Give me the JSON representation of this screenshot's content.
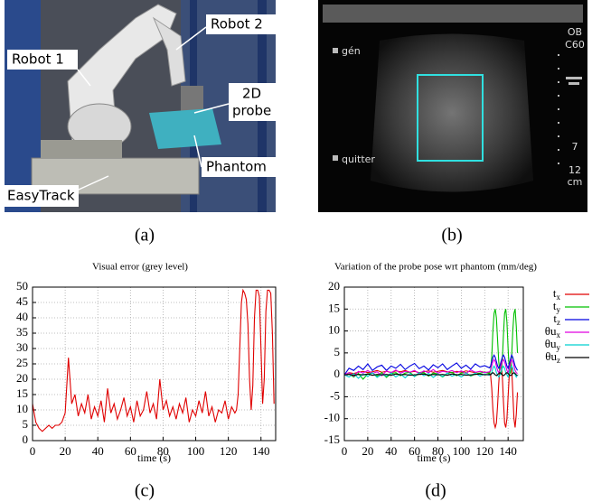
{
  "panel_a": {
    "labels": {
      "robot1": "Robot 1",
      "robot2": "Robot 2",
      "probe": [
        "2D",
        "probe"
      ],
      "phantom": "Phantom",
      "easytrack": "EasyTrack"
    },
    "caption": "(a)"
  },
  "panel_b": {
    "texts": {
      "gen": "gén",
      "quitter": "quitter",
      "ob": "OB",
      "c60": "C60",
      "depth": "7",
      "scale": "12",
      "unit": "cm"
    },
    "caption": "(b)"
  },
  "chart_data": [
    {
      "type": "line",
      "title": "Visual error (grey level)",
      "xlabel": "time (s)",
      "caption": "(c)",
      "xlim": [
        0,
        149
      ],
      "ylim": [
        0,
        50
      ],
      "xticks": [
        0,
        20,
        40,
        60,
        80,
        100,
        120,
        140
      ],
      "yticks": [
        0,
        5,
        10,
        15,
        20,
        25,
        30,
        35,
        40,
        45,
        50
      ],
      "grid": true,
      "x": [
        0,
        2,
        4,
        6,
        8,
        10,
        12,
        14,
        16,
        18,
        20,
        22,
        24,
        26,
        28,
        30,
        32,
        34,
        36,
        38,
        40,
        42,
        44,
        46,
        48,
        50,
        52,
        54,
        56,
        58,
        60,
        62,
        64,
        66,
        68,
        70,
        72,
        74,
        76,
        78,
        80,
        82,
        84,
        86,
        88,
        90,
        92,
        94,
        96,
        98,
        100,
        102,
        104,
        106,
        108,
        110,
        112,
        114,
        116,
        118,
        120,
        122,
        124,
        125,
        126,
        127,
        128,
        129,
        130,
        131,
        132,
        133,
        134,
        135,
        136,
        137,
        138,
        139,
        140,
        141,
        142,
        143,
        144,
        145,
        146,
        147,
        148
      ],
      "series": [
        {
          "color": "#e00000",
          "values": [
            12,
            6,
            4,
            3,
            4,
            5,
            4,
            5,
            5,
            6,
            9,
            27,
            12,
            15,
            8,
            12,
            9,
            15,
            7,
            11,
            8,
            13,
            6,
            17,
            9,
            12,
            7,
            10,
            14,
            8,
            11,
            6,
            13,
            8,
            10,
            16,
            9,
            12,
            7,
            20,
            10,
            13,
            8,
            11,
            7,
            12,
            9,
            14,
            6,
            10,
            8,
            13,
            9,
            16,
            8,
            11,
            6,
            10,
            9,
            13,
            7,
            11,
            9,
            10,
            15,
            30,
            45,
            49,
            48,
            46,
            38,
            20,
            10,
            18,
            40,
            49,
            49,
            47,
            30,
            12,
            20,
            42,
            49,
            49,
            48,
            35,
            12
          ]
        }
      ]
    },
    {
      "type": "line",
      "title": "Variation of the probe pose wrt phantom (mm/deg)",
      "xlabel": "time (s)",
      "caption": "(d)",
      "xlim": [
        0,
        153
      ],
      "ylim": [
        -15,
        20
      ],
      "xticks": [
        0,
        20,
        40,
        60,
        80,
        100,
        120,
        140
      ],
      "yticks": [
        -15,
        -10,
        -5,
        0,
        5,
        10,
        15,
        20
      ],
      "grid": true,
      "legend": "right",
      "x": [
        0,
        4,
        8,
        12,
        16,
        20,
        24,
        28,
        32,
        36,
        40,
        44,
        48,
        52,
        56,
        60,
        64,
        68,
        72,
        76,
        80,
        84,
        88,
        92,
        96,
        100,
        104,
        108,
        112,
        116,
        120,
        124,
        125,
        126,
        127,
        128,
        129,
        130,
        131,
        132,
        133,
        134,
        135,
        136,
        137,
        138,
        139,
        140,
        141,
        142,
        143,
        144,
        145,
        146,
        147,
        148
      ],
      "series": [
        {
          "name": "tx",
          "color": "#e00000",
          "values": [
            0,
            0.5,
            0.3,
            0.6,
            0.8,
            0.5,
            0.7,
            1,
            0.6,
            0.8,
            0.5,
            0.9,
            0.7,
            1,
            0.6,
            0.8,
            0.5,
            0.7,
            0.9,
            0.6,
            0.8,
            1,
            0.7,
            0.5,
            0.8,
            0.6,
            0.9,
            0.7,
            0.5,
            0.8,
            0.6,
            0.5,
            0,
            -3,
            -8,
            -11,
            -12,
            -11,
            -7,
            -2,
            2,
            3,
            0,
            -6,
            -11,
            -12,
            -10,
            -5,
            0,
            3,
            2,
            -4,
            -10,
            -12,
            -9,
            -4
          ]
        },
        {
          "name": "ty",
          "color": "#00c000",
          "values": [
            0,
            0.2,
            -0.5,
            0.3,
            -1,
            0.2,
            0.4,
            -0.3,
            0.5,
            -0.6,
            0.3,
            0.5,
            -0.2,
            0.4,
            0.6,
            -0.4,
            0.3,
            0.5,
            -0.3,
            0.4,
            0.2,
            -0.5,
            0.3,
            0.6,
            -0.2,
            0.4,
            0.5,
            -0.3,
            0.2,
            0.4,
            0.6,
            0.3,
            1,
            4,
            10,
            14,
            15,
            13,
            8,
            3,
            0.5,
            0.2,
            3,
            9,
            14,
            15,
            12,
            6,
            1,
            0.3,
            4,
            10,
            14,
            15,
            11,
            5
          ]
        },
        {
          "name": "tz",
          "color": "#0000e0",
          "values": [
            0,
            1.5,
            1,
            2,
            1.2,
            2.5,
            1,
            1.8,
            2.2,
            1,
            2,
            1.5,
            2.4,
            1.2,
            2,
            2.6,
            1.4,
            2,
            1.1,
            2.3,
            1.6,
            2.5,
            1.2,
            2,
            2.7,
            1.5,
            2.2,
            1.3,
            2.5,
            1.8,
            2.1,
            1.6,
            2,
            3,
            4,
            4.5,
            4,
            3,
            2,
            1.5,
            2,
            3,
            4,
            4.5,
            4,
            3,
            2,
            1.5,
            2.5,
            3.5,
            4.5,
            4,
            3,
            2,
            1.5,
            1
          ]
        },
        {
          "name": "θux",
          "color": "#e000e0",
          "values": [
            0,
            0.5,
            -0.3,
            0.8,
            0.4,
            1,
            0.3,
            0.7,
            -0.2,
            0.9,
            0.5,
            1.1,
            0.4,
            0.8,
            0.6,
            1,
            0.3,
            0.9,
            0.5,
            1.2,
            0.4,
            0.8,
            0.6,
            1,
            0.5,
            0.9,
            0.3,
            1.1,
            0.6,
            0.8,
            0.5,
            0.7,
            1,
            2,
            3,
            3.5,
            3,
            2,
            1,
            0.5,
            1,
            2,
            3,
            3.5,
            3,
            2,
            1,
            0.5,
            1.5,
            2.5,
            3.5,
            3,
            2,
            1,
            0.5,
            0.3
          ]
        },
        {
          "name": "θuy",
          "color": "#00d0d0",
          "values": [
            0,
            -0.5,
            0.3,
            -0.8,
            0.2,
            -0.4,
            0.5,
            -0.6,
            0.1,
            -0.3,
            0.4,
            -0.5,
            0.2,
            -0.7,
            0.3,
            -0.4,
            0.5,
            -0.2,
            0.3,
            -0.6,
            0.2,
            -0.4,
            0.4,
            -0.3,
            0.1,
            -0.5,
            0.3,
            -0.2,
            0.4,
            -0.3,
            0.2,
            -0.1,
            0,
            0.5,
            1.5,
            2,
            1.5,
            0.5,
            0,
            -0.5,
            0,
            0.5,
            1.5,
            2,
            1.5,
            0.5,
            0,
            -0.5,
            0.5,
            1.5,
            2,
            1.5,
            0.5,
            0,
            -0.5,
            0
          ]
        },
        {
          "name": "θuz",
          "color": "#000000",
          "values": [
            0,
            0.1,
            -0.1,
            0.1,
            0,
            0.2,
            -0.1,
            0.1,
            0,
            0.1,
            -0.1,
            0.2,
            0,
            0.1,
            -0.1,
            0,
            0.1,
            0.2,
            -0.1,
            0.1,
            0,
            0.1,
            -0.1,
            0.2,
            0,
            0.1,
            -0.1,
            0,
            0.1,
            0.2,
            0,
            0.1,
            0,
            0.3,
            0.5,
            0.3,
            0,
            -0.2,
            0,
            0.3,
            0.5,
            0.3,
            0,
            -0.2,
            0,
            0.3,
            0.5,
            0.3,
            0,
            -0.2,
            0,
            0.3,
            0.5,
            0.3,
            0,
            -0.2
          ]
        }
      ]
    }
  ]
}
